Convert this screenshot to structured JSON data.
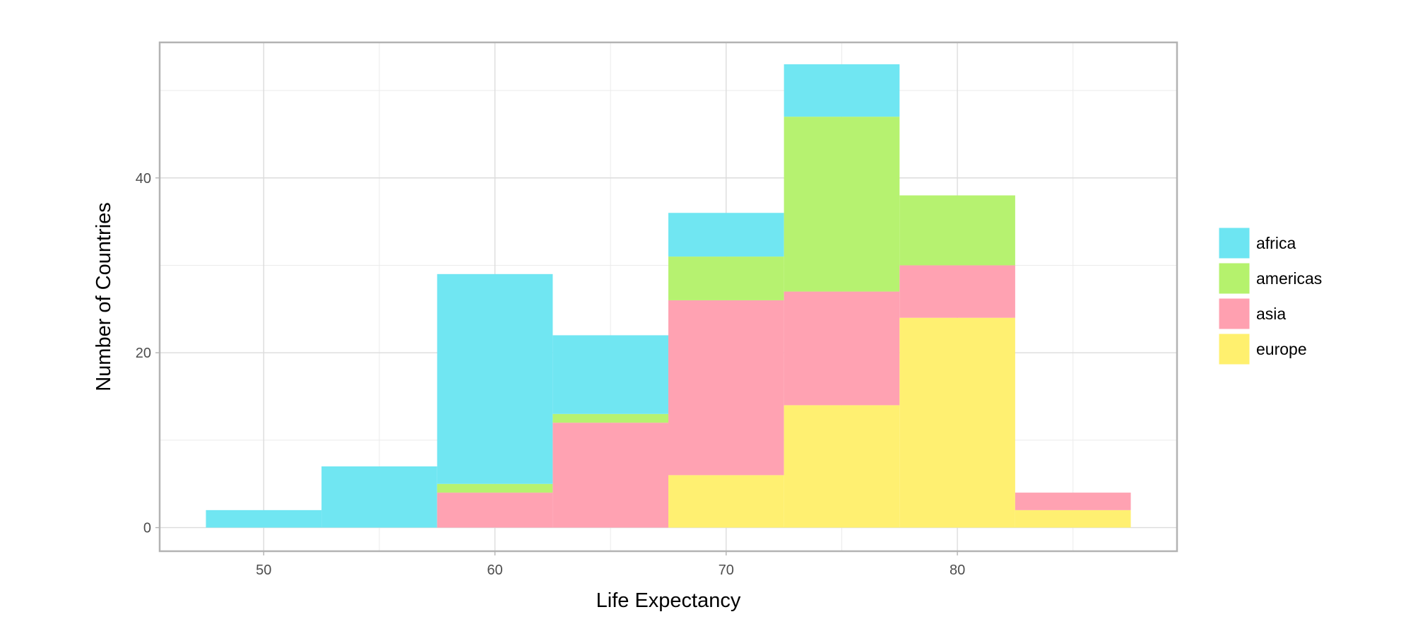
{
  "chart_data": {
    "type": "bar",
    "subtype": "stacked-histogram",
    "xlabel": "Life Expectancy",
    "ylabel": "Number of Countries",
    "xlim": [
      45.5,
      89.5
    ],
    "ylim": [
      -2.7,
      55.5
    ],
    "x_ticks": [
      50,
      60,
      70,
      80
    ],
    "y_ticks": [
      0,
      20,
      40
    ],
    "grid": true,
    "legend_position": "right",
    "bins": [
      [
        47.5,
        52.5
      ],
      [
        52.5,
        57.5
      ],
      [
        57.5,
        62.5
      ],
      [
        62.5,
        67.5
      ],
      [
        67.5,
        72.5
      ],
      [
        72.5,
        77.5
      ],
      [
        77.5,
        82.5
      ],
      [
        82.5,
        87.5
      ]
    ],
    "stack_order": [
      "europe",
      "asia",
      "americas",
      "africa"
    ],
    "series": [
      {
        "name": "africa",
        "color": "#6de5f2",
        "values": [
          2,
          7,
          24,
          9,
          5,
          6,
          0,
          0
        ]
      },
      {
        "name": "americas",
        "color": "#b5f26d",
        "values": [
          0,
          0,
          1,
          1,
          5,
          20,
          8,
          0
        ]
      },
      {
        "name": "asia",
        "color": "#ffa0b0",
        "values": [
          0,
          0,
          4,
          12,
          20,
          13,
          6,
          2
        ]
      },
      {
        "name": "europe",
        "color": "#fff06e",
        "values": [
          0,
          0,
          0,
          0,
          6,
          14,
          24,
          2
        ]
      }
    ]
  }
}
